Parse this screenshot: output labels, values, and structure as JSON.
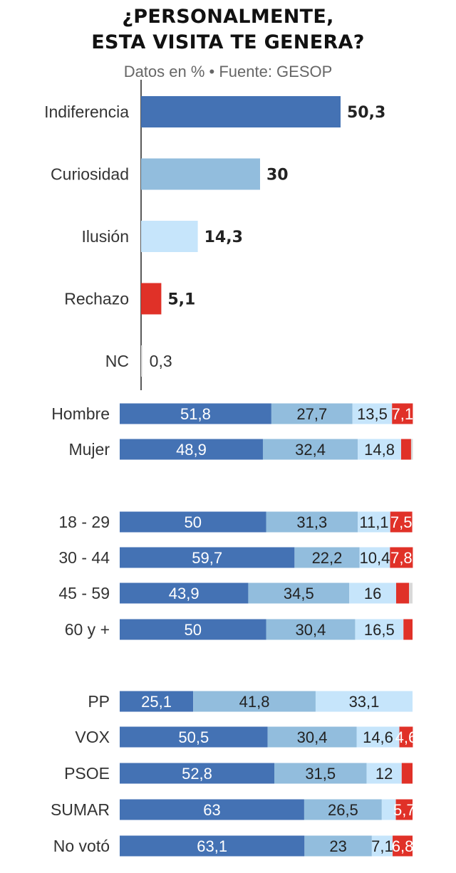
{
  "title_line1": "¿PERSONALMENTE,",
  "title_line2": "ESTA VISITA TE GENERA?",
  "subtitle": "Datos en % • Fuente: GESOP",
  "colors": {
    "Indiferencia": "#4472b4",
    "Curiosidad": "#92bddd",
    "Ilusión": "#c6e5fb",
    "Rechazo": "#e03128",
    "NC": "#d9d9d9"
  },
  "chart_data": [
    {
      "type": "bar",
      "orientation": "horizontal",
      "categories": [
        "Indiferencia",
        "Curiosidad",
        "Ilusión",
        "Rechazo",
        "NC"
      ],
      "values": [
        50.3,
        30,
        14.3,
        5.1,
        0.3
      ],
      "value_labels": [
        "50,3",
        "30",
        "14,3",
        "5,1",
        "0,3"
      ],
      "xlim": [
        0,
        100
      ]
    },
    {
      "type": "bar",
      "orientation": "horizontal",
      "stacked": true,
      "categories": [
        "Hombre",
        "Mujer",
        "18 - 29",
        "30 - 44",
        "45 - 59",
        "60 y +",
        "PP",
        "VOX",
        "PSOE",
        "SUMAR",
        "No votó"
      ],
      "groups": [
        [
          0,
          1
        ],
        [
          2,
          3,
          4,
          5
        ],
        [
          6,
          7,
          8,
          9,
          10
        ]
      ],
      "series": [
        {
          "name": "Indiferencia",
          "values": [
            51.8,
            48.9,
            50,
            59.7,
            43.9,
            50,
            25.1,
            50.5,
            52.8,
            63,
            63.1
          ],
          "labels": [
            "51,8",
            "48,9",
            "50",
            "59,7",
            "43,9",
            "50",
            "25,1",
            "50,5",
            "52,8",
            "63",
            "63,1"
          ]
        },
        {
          "name": "Curiosidad",
          "values": [
            27.7,
            32.4,
            31.3,
            22.2,
            34.5,
            30.4,
            41.8,
            30.4,
            31.5,
            26.5,
            23
          ],
          "labels": [
            "27,7",
            "32,4",
            "31,3",
            "22,2",
            "34,5",
            "30,4",
            "41,8",
            "30,4",
            "31,5",
            "26,5",
            "23"
          ]
        },
        {
          "name": "Ilusión",
          "values": [
            13.5,
            14.8,
            11.1,
            10.4,
            16,
            16.5,
            33.1,
            14.6,
            12,
            4.8,
            7.1
          ],
          "labels": [
            "13,5",
            "14,8",
            "11,1",
            "10,4",
            "16",
            "16,5",
            "33,1",
            "14,6",
            "12",
            "",
            "7,1"
          ]
        },
        {
          "name": "Rechazo",
          "values": [
            7.1,
            3.4,
            7.5,
            7.8,
            4.4,
            3.1,
            0,
            4.6,
            3.7,
            5.7,
            6.8
          ],
          "labels": [
            "7,1",
            "",
            "7,5",
            "7,8",
            "",
            "",
            "",
            "4,6",
            "",
            "5,7",
            "6,8"
          ]
        },
        {
          "name": "NC",
          "values": [
            0,
            0.6,
            0,
            0,
            1.2,
            0,
            0,
            0,
            0,
            0,
            0
          ],
          "labels": [
            "",
            "",
            "",
            "",
            "",
            "",
            "",
            "",
            "",
            "",
            ""
          ]
        }
      ],
      "xlim": [
        0,
        100
      ]
    }
  ]
}
